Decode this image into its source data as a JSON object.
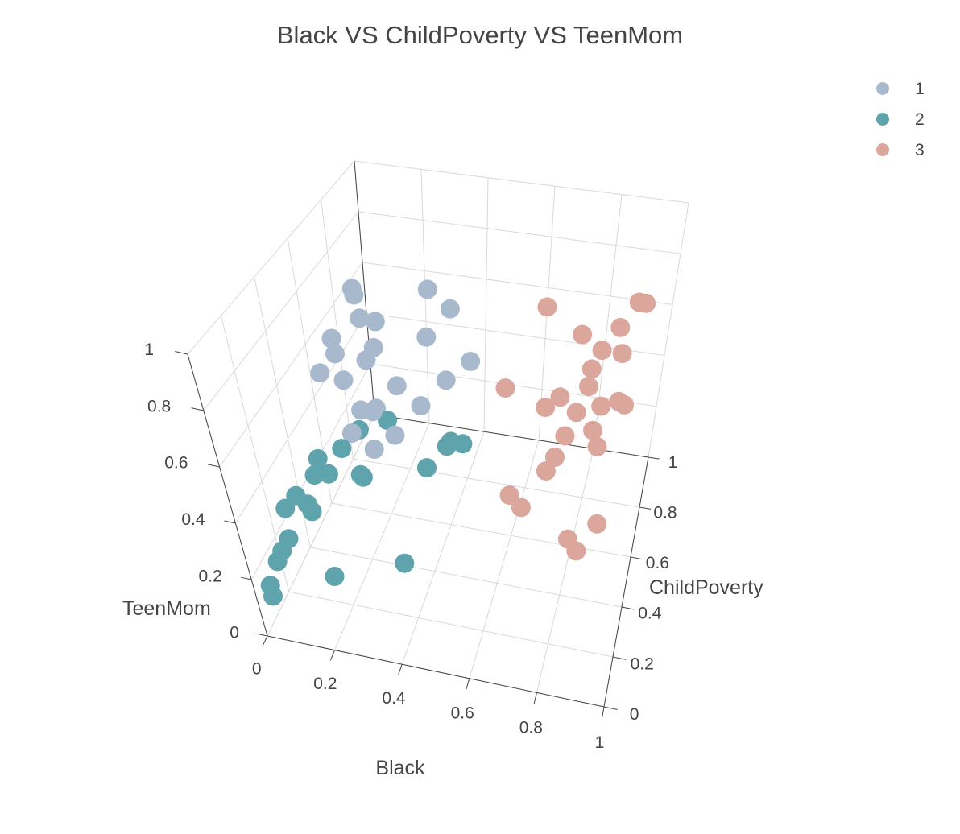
{
  "chart_data": {
    "type": "scatter3d",
    "title": "Black VS ChildPoverty VS TeenMom",
    "axes": {
      "x": {
        "label": "Black",
        "range": [
          0,
          1
        ],
        "ticks": [
          "0",
          "0.2",
          "0.4",
          "0.6",
          "0.8",
          "1"
        ]
      },
      "y": {
        "label": "ChildPoverty",
        "range": [
          0,
          1
        ],
        "ticks": [
          "0",
          "0.2",
          "0.4",
          "0.6",
          "0.8",
          "1"
        ]
      },
      "z": {
        "label": "TeenMom",
        "range": [
          0,
          1
        ],
        "ticks": [
          "0",
          "0.2",
          "0.4",
          "0.6",
          "0.8",
          "1"
        ]
      }
    },
    "grid": true,
    "legend_position": "top-right",
    "series": [
      {
        "name": "1",
        "color": "#a9b9cd",
        "points": [
          [
            0.01,
            0.9,
            0.58
          ],
          [
            0.04,
            0.85,
            0.6
          ],
          [
            0.06,
            0.83,
            0.53
          ],
          [
            0.09,
            0.87,
            0.49
          ],
          [
            0.11,
            0.8,
            0.45
          ],
          [
            0.03,
            0.7,
            0.55
          ],
          [
            0.05,
            0.67,
            0.52
          ],
          [
            0.02,
            0.62,
            0.48
          ],
          [
            0.08,
            0.64,
            0.45
          ],
          [
            0.12,
            0.72,
            0.47
          ],
          [
            0.15,
            0.58,
            0.4
          ],
          [
            0.2,
            0.55,
            0.43
          ],
          [
            0.25,
            0.9,
            0.62
          ],
          [
            0.3,
            0.75,
            0.57
          ],
          [
            0.28,
            0.5,
            0.4
          ],
          [
            0.35,
            0.82,
            0.63
          ],
          [
            0.38,
            0.68,
            0.48
          ],
          [
            0.32,
            0.62,
            0.42
          ],
          [
            0.45,
            0.7,
            0.55
          ],
          [
            0.22,
            0.48,
            0.35
          ],
          [
            0.18,
            0.62,
            0.38
          ],
          [
            0.14,
            0.52,
            0.36
          ],
          [
            0.26,
            0.6,
            0.5
          ]
        ]
      },
      {
        "name": "2",
        "color": "#5fa3ad",
        "points": [
          [
            0.01,
            0.2,
            0.15
          ],
          [
            0.03,
            0.12,
            0.18
          ],
          [
            0.05,
            0.18,
            0.22
          ],
          [
            0.02,
            0.26,
            0.26
          ],
          [
            0.04,
            0.3,
            0.28
          ],
          [
            0.07,
            0.38,
            0.3
          ],
          [
            0.06,
            0.44,
            0.31
          ],
          [
            0.09,
            0.28,
            0.25
          ],
          [
            0.05,
            0.34,
            0.22
          ],
          [
            0.08,
            0.45,
            0.25
          ],
          [
            0.12,
            0.48,
            0.33
          ],
          [
            0.15,
            0.55,
            0.35
          ],
          [
            0.18,
            0.45,
            0.27
          ],
          [
            0.2,
            0.42,
            0.29
          ],
          [
            0.22,
            0.6,
            0.36
          ],
          [
            0.35,
            0.55,
            0.25
          ],
          [
            0.4,
            0.6,
            0.3
          ],
          [
            0.42,
            0.58,
            0.34
          ],
          [
            0.45,
            0.6,
            0.32
          ],
          [
            0.36,
            0.25,
            0.15
          ],
          [
            0.18,
            0.15,
            0.14
          ],
          [
            0.01,
            0.08,
            0.12
          ],
          [
            0.02,
            0.06,
            0.1
          ]
        ]
      },
      {
        "name": "3",
        "color": "#dba69c",
        "points": [
          [
            0.62,
            0.92,
            0.6
          ],
          [
            0.75,
            0.85,
            0.58
          ],
          [
            0.82,
            0.82,
            0.56
          ],
          [
            0.86,
            0.88,
            0.6
          ],
          [
            0.9,
            0.95,
            0.64
          ],
          [
            0.92,
            0.96,
            0.63
          ],
          [
            0.88,
            0.84,
            0.54
          ],
          [
            0.8,
            0.75,
            0.48
          ],
          [
            0.85,
            0.7,
            0.46
          ],
          [
            0.9,
            0.72,
            0.47
          ],
          [
            0.68,
            0.7,
            0.42
          ],
          [
            0.72,
            0.72,
            0.45
          ],
          [
            0.78,
            0.68,
            0.44
          ],
          [
            0.55,
            0.72,
            0.45
          ],
          [
            0.76,
            0.62,
            0.4
          ],
          [
            0.84,
            0.64,
            0.42
          ],
          [
            0.86,
            0.62,
            0.38
          ],
          [
            0.72,
            0.55,
            0.32
          ],
          [
            0.74,
            0.58,
            0.35
          ],
          [
            0.92,
            0.7,
            0.48
          ],
          [
            0.62,
            0.5,
            0.25
          ],
          [
            0.66,
            0.48,
            0.23
          ],
          [
            0.82,
            0.4,
            0.22
          ],
          [
            0.85,
            0.38,
            0.2
          ],
          [
            0.9,
            0.44,
            0.26
          ],
          [
            0.8,
            0.78,
            0.52
          ]
        ]
      }
    ]
  }
}
